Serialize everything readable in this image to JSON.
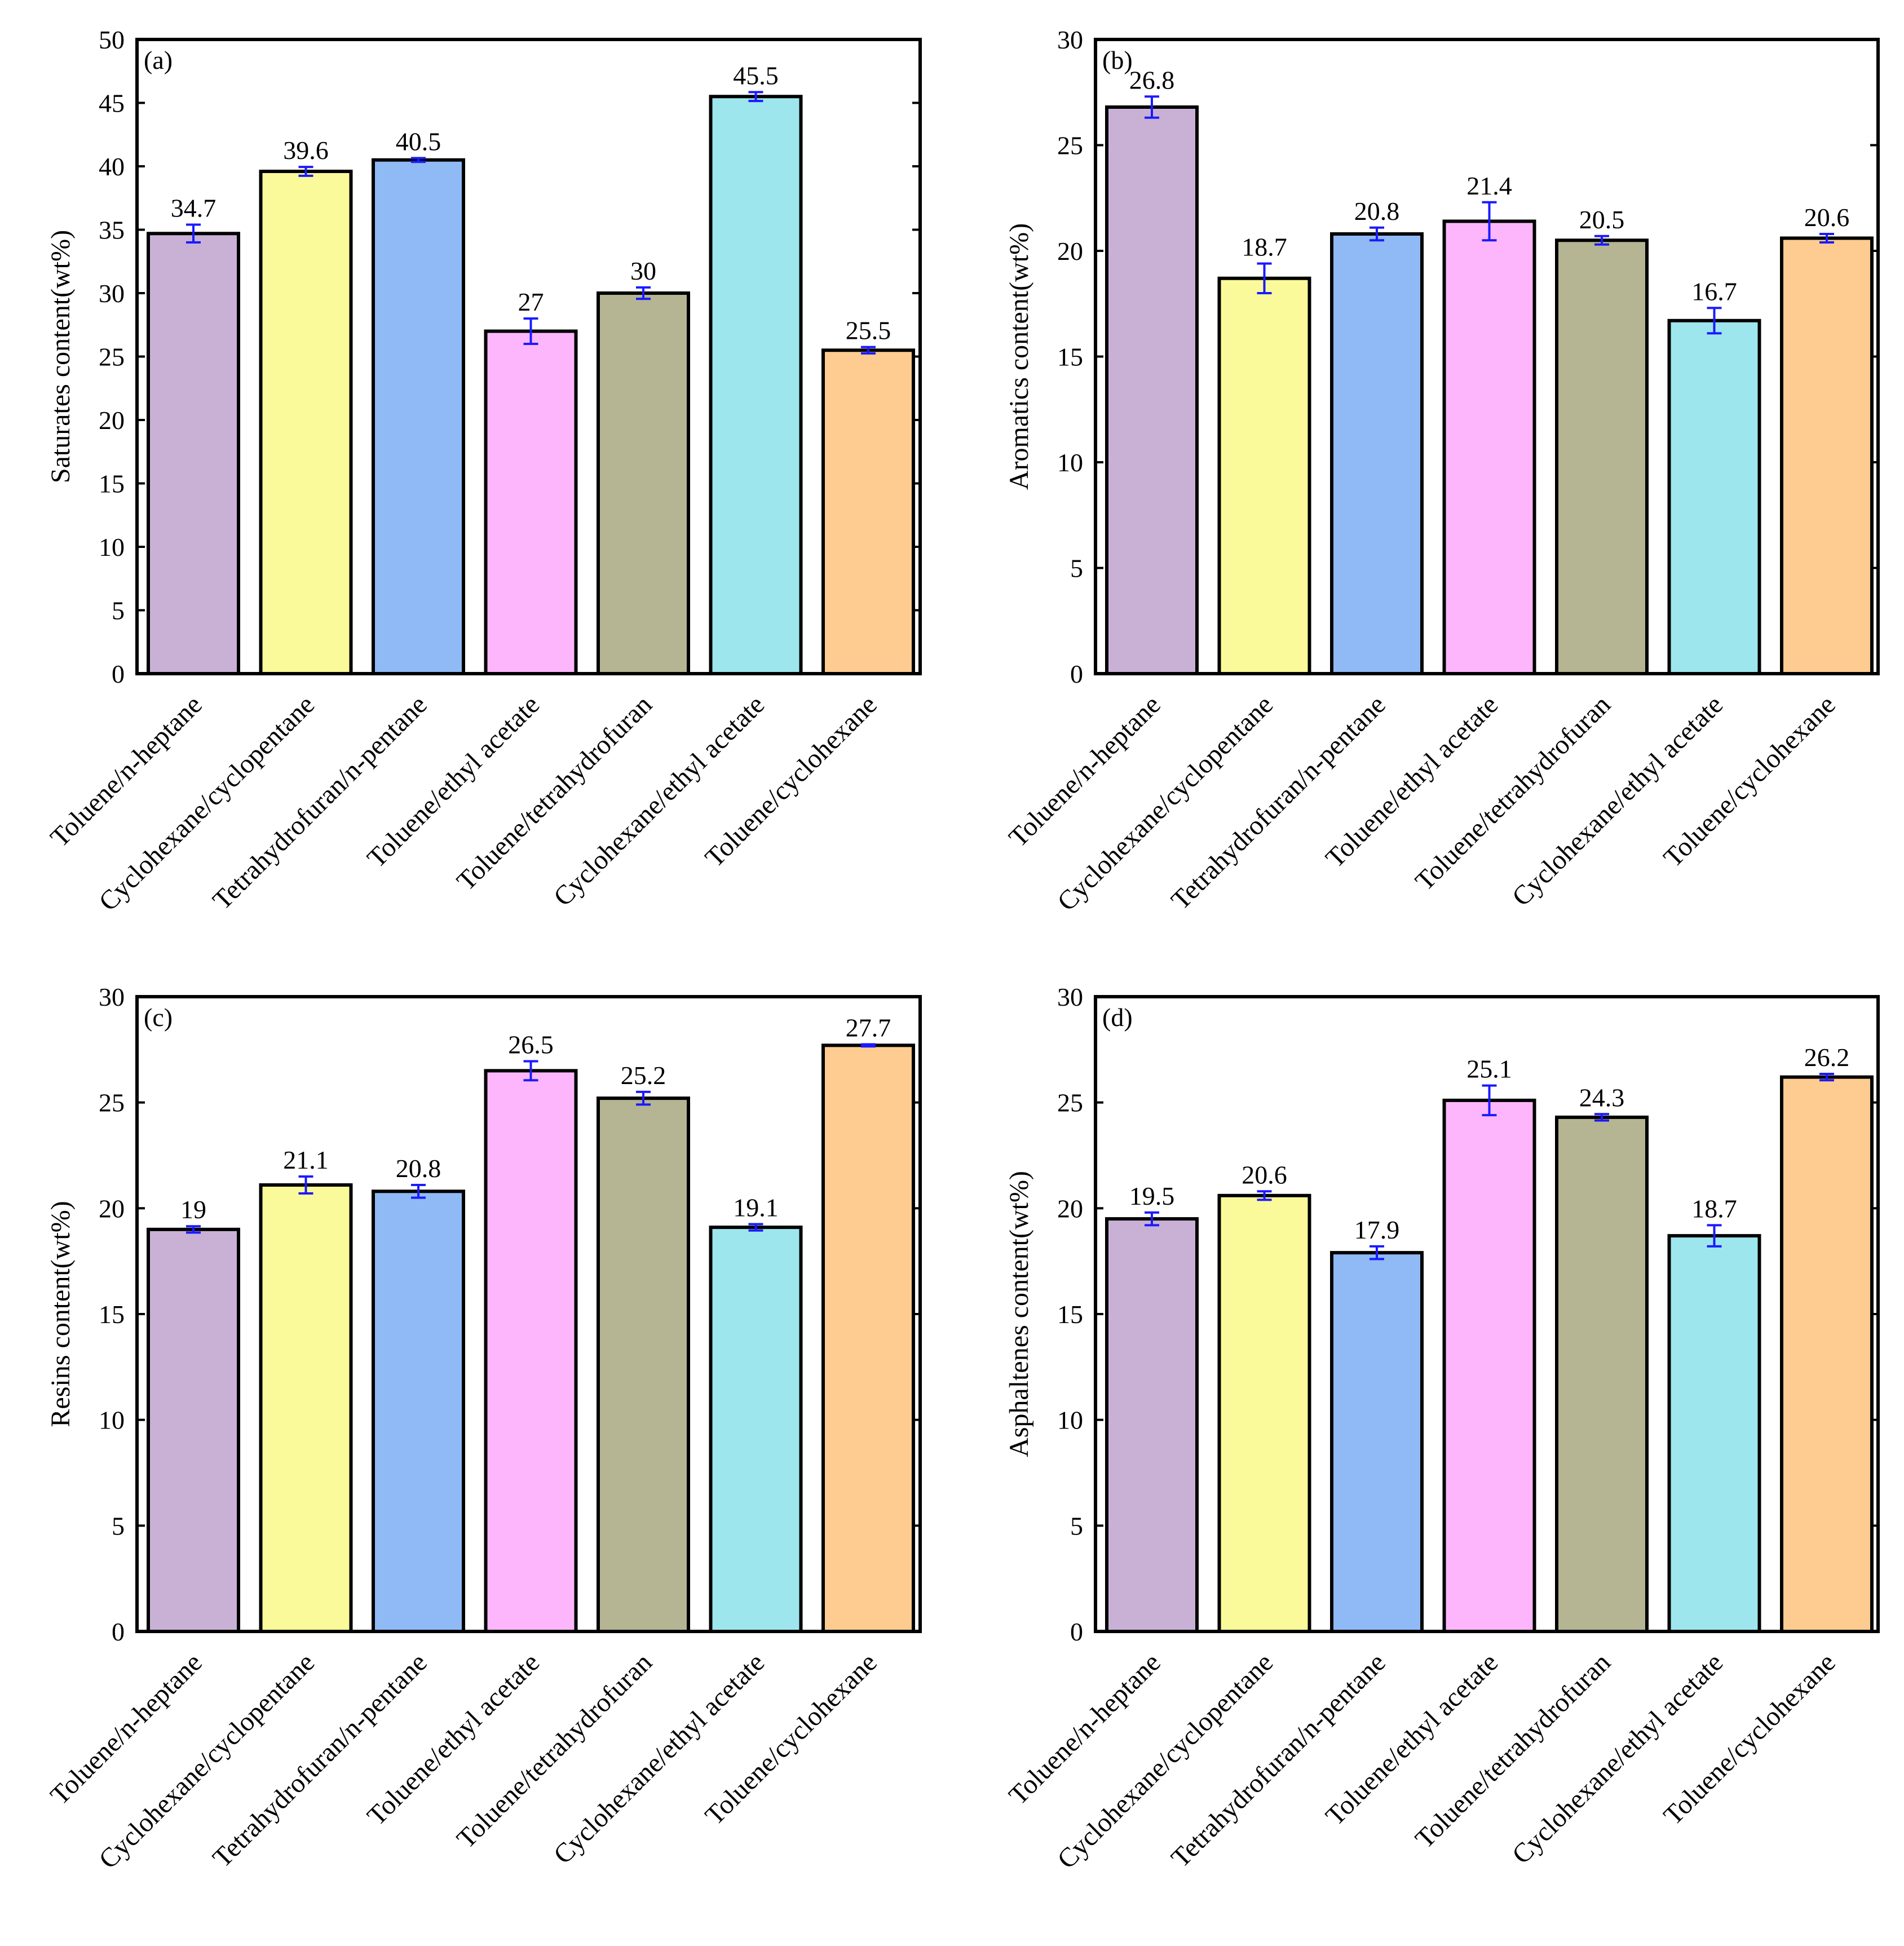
{
  "figure": {
    "error_bar_color": "#1a1aff",
    "bar_colors": [
      "#c9b1d6",
      "#fafa9a",
      "#8fbaf5",
      "#fdb6fb",
      "#b5b593",
      "#9ee6ee",
      "#fecc91"
    ]
  },
  "chart_data": [
    {
      "type": "bar",
      "panel": "(a)",
      "ylabel": "Saturates content(wt%)",
      "ylim": [
        0,
        50
      ],
      "yticks": [
        0,
        5,
        10,
        15,
        20,
        25,
        30,
        35,
        40,
        45,
        50
      ],
      "categories": [
        "Toluene/n-heptane",
        "Cyclohexane/cyclopentane",
        "Tetrahydrofuran/n-pentane",
        "Toluene/ethyl acetate",
        "Toluene/tetrahydrofuran",
        "Cyclohexane/ethyl acetate",
        "Toluene/cyclohexane"
      ],
      "values": [
        34.7,
        39.6,
        40.5,
        27,
        30,
        45.5,
        25.5
      ],
      "value_labels": [
        "34.7",
        "39.6",
        "40.5",
        "27",
        "30",
        "45.5",
        "25.5"
      ],
      "errors": [
        0.7,
        0.35,
        0.15,
        1.0,
        0.45,
        0.35,
        0.25
      ],
      "grid": false,
      "legend": "none"
    },
    {
      "type": "bar",
      "panel": "(b)",
      "ylabel": "Aromatics content(wt%)",
      "ylim": [
        0,
        30
      ],
      "yticks": [
        0,
        5,
        10,
        15,
        20,
        25,
        30
      ],
      "categories": [
        "Toluene/n-heptane",
        "Cyclohexane/cyclopentane",
        "Tetrahydrofuran/n-pentane",
        "Toluene/ethyl acetate",
        "Toluene/tetrahydrofuran",
        "Cyclohexane/ethyl acetate",
        "Toluene/cyclohexane"
      ],
      "values": [
        26.8,
        18.7,
        20.8,
        21.4,
        20.5,
        16.7,
        20.6
      ],
      "value_labels": [
        "26.8",
        "18.7",
        "20.8",
        "21.4",
        "20.5",
        "16.7",
        "20.6"
      ],
      "errors": [
        0.5,
        0.7,
        0.3,
        0.9,
        0.2,
        0.6,
        0.2
      ],
      "grid": false,
      "legend": "none"
    },
    {
      "type": "bar",
      "panel": "(c)",
      "ylabel": "Resins content(wt%)",
      "ylim": [
        0,
        30
      ],
      "yticks": [
        0,
        5,
        10,
        15,
        20,
        25,
        30
      ],
      "categories": [
        "Toluene/n-heptane",
        "Cyclohexane/cyclopentane",
        "Tetrahydrofuran/n-pentane",
        "Toluene/ethyl acetate",
        "Toluene/tetrahydrofuran",
        "Cyclohexane/ethyl acetate",
        "Toluene/cyclohexane"
      ],
      "values": [
        19,
        21.1,
        20.8,
        26.5,
        25.2,
        19.1,
        27.7
      ],
      "value_labels": [
        "19",
        "21.1",
        "20.8",
        "26.5",
        "25.2",
        "19.1",
        "27.7"
      ],
      "errors": [
        0.15,
        0.4,
        0.3,
        0.45,
        0.3,
        0.15,
        0.05
      ],
      "grid": false,
      "legend": "none"
    },
    {
      "type": "bar",
      "panel": "(d)",
      "ylabel": "Asphaltenes content(wt%)",
      "ylim": [
        0,
        30
      ],
      "yticks": [
        0,
        5,
        10,
        15,
        20,
        25,
        30
      ],
      "categories": [
        "Toluene/n-heptane",
        "Cyclohexane/cyclopentane",
        "Tetrahydrofuran/n-pentane",
        "Toluene/ethyl acetate",
        "Toluene/tetrahydrofuran",
        "Cyclohexane/ethyl acetate",
        "Toluene/cyclohexane"
      ],
      "values": [
        19.5,
        20.6,
        17.9,
        25.1,
        24.3,
        18.7,
        26.2
      ],
      "value_labels": [
        "19.5",
        "20.6",
        "17.9",
        "25.1",
        "24.3",
        "18.7",
        "26.2"
      ],
      "errors": [
        0.3,
        0.2,
        0.3,
        0.7,
        0.15,
        0.5,
        0.15
      ],
      "grid": false,
      "legend": "none"
    }
  ]
}
